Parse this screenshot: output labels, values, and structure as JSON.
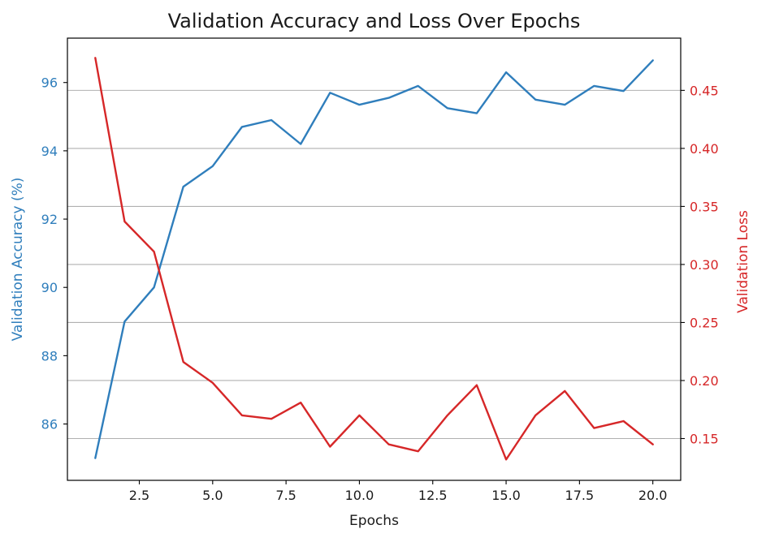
{
  "chart_data": {
    "type": "line",
    "title": "Validation Accuracy and Loss Over Epochs",
    "xlabel": "Epochs",
    "ylabel_left": "Validation Accuracy (%)",
    "ylabel_right": "Validation Loss",
    "xlim": [
      0.05,
      20.95
    ],
    "ylim_left": [
      84.35,
      97.3
    ],
    "ylim_right": [
      0.114,
      0.495
    ],
    "x_ticks": [
      2.5,
      5.0,
      7.5,
      10.0,
      12.5,
      15.0,
      17.5,
      20.0
    ],
    "x_tick_labels": [
      "2.5",
      "5.0",
      "7.5",
      "10.0",
      "12.5",
      "15.0",
      "17.5",
      "20.0"
    ],
    "y_left_ticks": [
      86,
      88,
      90,
      92,
      94,
      96
    ],
    "y_left_tick_labels": [
      "86",
      "88",
      "90",
      "92",
      "94",
      "96"
    ],
    "y_right_ticks": [
      0.15,
      0.2,
      0.25,
      0.3,
      0.35,
      0.4,
      0.45
    ],
    "y_right_tick_labels": [
      "0.15",
      "0.20",
      "0.25",
      "0.30",
      "0.35",
      "0.40",
      "0.45"
    ],
    "grid": "right-axis horizontal gridlines",
    "colors": {
      "accuracy": "#2f7ebc",
      "loss": "#d62728",
      "grid": "#b0b0b0",
      "axis": "#000000"
    },
    "x": [
      1,
      2,
      3,
      4,
      5,
      6,
      7,
      8,
      9,
      10,
      11,
      12,
      13,
      14,
      15,
      16,
      17,
      18,
      19,
      20
    ],
    "series": [
      {
        "axis": "left",
        "values": [
          85.0,
          89.0,
          90.0,
          92.95,
          93.55,
          94.7,
          94.9,
          94.2,
          95.7,
          95.35,
          95.55,
          95.9,
          95.25,
          95.1,
          96.3,
          95.5,
          95.35,
          95.9,
          95.75,
          96.65
        ]
      },
      {
        "axis": "right",
        "values": [
          0.478,
          0.337,
          0.311,
          0.216,
          0.198,
          0.17,
          0.167,
          0.181,
          0.143,
          0.17,
          0.145,
          0.139,
          0.17,
          0.196,
          0.132,
          0.17,
          0.191,
          0.159,
          0.165,
          0.145
        ]
      }
    ]
  }
}
